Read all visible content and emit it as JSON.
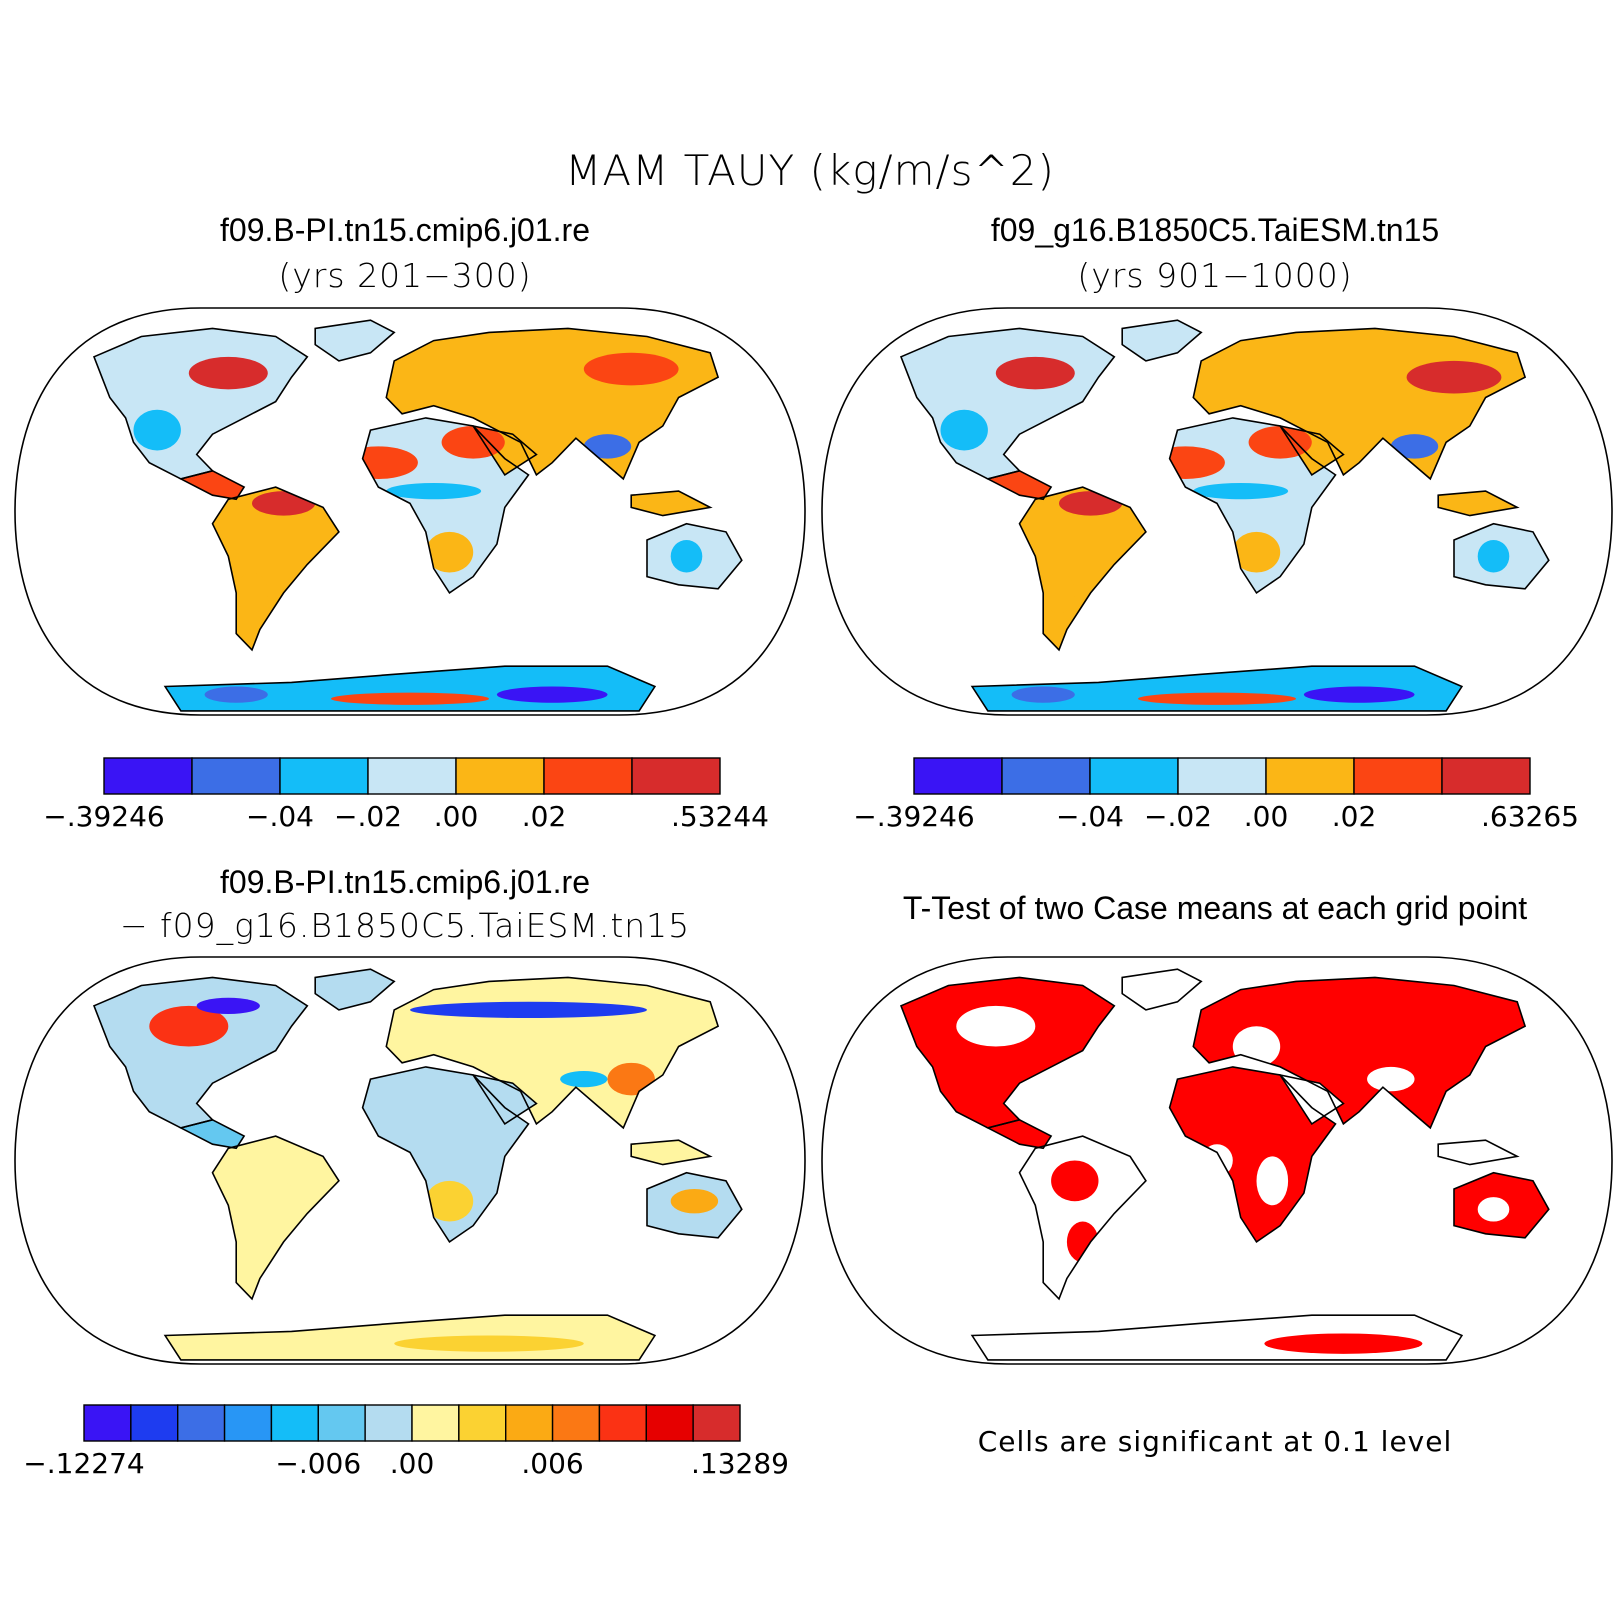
{
  "title": "MAM TAUY (kg/m/s^2)",
  "panels": [
    {
      "id": "case1",
      "title": "f09.B-PI.tn15.cmip6.j01.re",
      "subtitle": "(yrs 201−300)",
      "colorbar": {
        "colors": [
          "#3a14f5",
          "#3c6ee6",
          "#14bdf8",
          "#c8e6f5",
          "#fbb616",
          "#fb4513",
          "#d72c2c"
        ],
        "labels": [
          "−.39246",
          "−.04",
          "−.02",
          ".00",
          ".02",
          ".53244"
        ],
        "label_positions": [
          0,
          2,
          3,
          4,
          5,
          7
        ]
      }
    },
    {
      "id": "case2",
      "title": "f09_g16.B1850C5.TaiESM.tn15",
      "subtitle": "(yrs 901−1000)",
      "colorbar": {
        "colors": [
          "#3a14f5",
          "#3c6ee6",
          "#14bdf8",
          "#c8e6f5",
          "#fbb616",
          "#fb4513",
          "#d72c2c"
        ],
        "labels": [
          "−.39246",
          "−.04",
          "−.02",
          ".00",
          ".02",
          ".63265"
        ],
        "label_positions": [
          0,
          2,
          3,
          4,
          5,
          7
        ]
      }
    },
    {
      "id": "difference",
      "title": "f09.B-PI.tn15.cmip6.j01.re",
      "subtitle": "− f09_g16.B1850C5.TaiESM.tn15",
      "colorbar": {
        "colors": [
          "#3a14f5",
          "#1e3cf0",
          "#3c6ee6",
          "#2896f5",
          "#14bdf8",
          "#64c8f0",
          "#b4dcf0",
          "#fff5a0",
          "#fbd232",
          "#fbaa14",
          "#fb7814",
          "#fb3214",
          "#e60000",
          "#d72c2c"
        ],
        "labels": [
          "−.12274",
          "−.006",
          ".00",
          ".006",
          ".13289"
        ],
        "label_positions": [
          0,
          5,
          7,
          10,
          14
        ]
      }
    },
    {
      "id": "ttest",
      "title": "T-Test of two Case means at each grid point",
      "note": "Cells are significant at 0.1 level",
      "fill_color": "#ff0000"
    }
  ],
  "map_palette": {
    "ocean": "#ffffff",
    "coast": "#000000"
  }
}
